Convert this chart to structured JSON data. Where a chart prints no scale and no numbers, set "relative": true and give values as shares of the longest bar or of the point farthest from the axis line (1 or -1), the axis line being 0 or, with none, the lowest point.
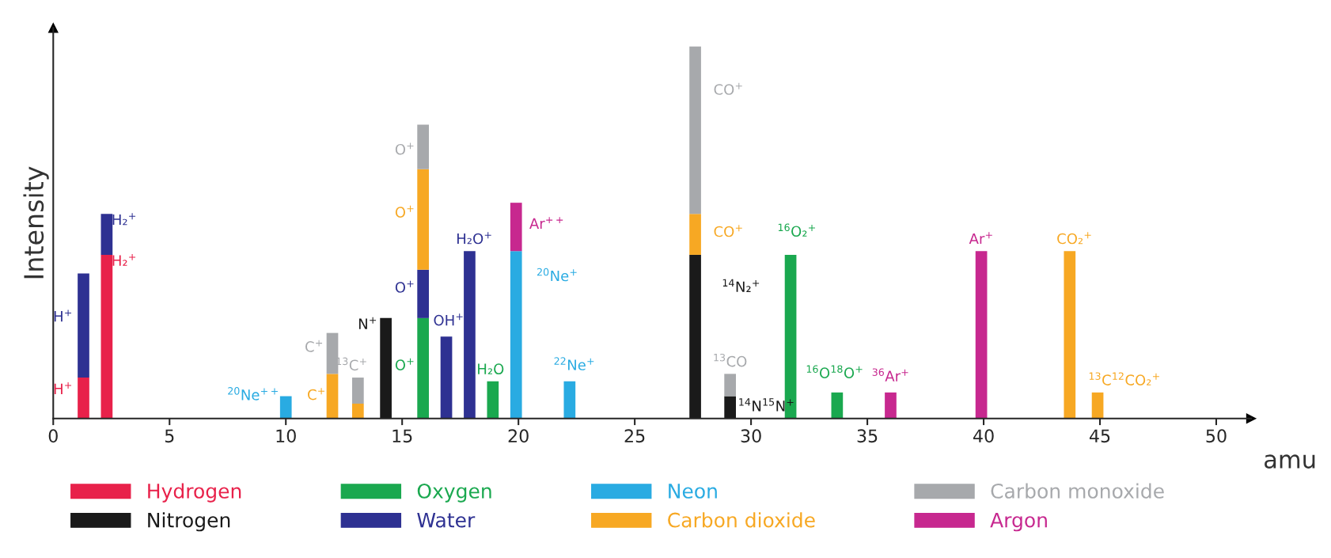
{
  "chart_data": {
    "type": "bar",
    "stacked": true,
    "relative": true,
    "xlabel": "amu",
    "ylabel": "Intensity",
    "xlim": [
      0,
      51.5
    ],
    "xticks": [
      0,
      5,
      10,
      15,
      20,
      25,
      30,
      35,
      40,
      45,
      50
    ],
    "legend": "bottom",
    "x": [
      1.3,
      2.3,
      10,
      12,
      13.1,
      14.3,
      15.9,
      16.9,
      17.9,
      18.9,
      19.9,
      22.2,
      27.6,
      29.1,
      31.7,
      33.7,
      36,
      39.9,
      43.7,
      44.9
    ],
    "series": [
      {
        "name": "Hydrogen",
        "color": "#e8214a",
        "values": [
          0.11,
          0.44,
          null,
          null,
          null,
          null,
          null,
          null,
          null,
          null,
          null,
          null,
          null,
          null,
          null,
          null,
          null,
          null,
          null,
          null
        ]
      },
      {
        "name": "Nitrogen",
        "color": "#1a1a1a",
        "values": [
          null,
          null,
          null,
          null,
          null,
          0.27,
          null,
          null,
          null,
          null,
          null,
          null,
          0.44,
          0.06,
          null,
          null,
          null,
          null,
          null,
          null
        ]
      },
      {
        "name": "Oxygen",
        "color": "#1aa84f",
        "values": [
          null,
          null,
          null,
          null,
          null,
          null,
          0.27,
          null,
          null,
          0.1,
          null,
          null,
          null,
          null,
          0.44,
          0.07,
          null,
          null,
          null,
          null
        ]
      },
      {
        "name": "Water",
        "color": "#2e3192",
        "values": [
          0.28,
          0.11,
          null,
          null,
          null,
          null,
          0.13,
          0.22,
          0.45,
          null,
          null,
          null,
          null,
          null,
          null,
          null,
          null,
          null,
          null,
          null
        ]
      },
      {
        "name": "Neon",
        "color": "#29abe2",
        "values": [
          null,
          null,
          0.06,
          null,
          null,
          null,
          null,
          null,
          null,
          null,
          0.45,
          0.1,
          null,
          null,
          null,
          null,
          null,
          null,
          null,
          null
        ]
      },
      {
        "name": "Carbon dioxide",
        "color": "#f7a823",
        "values": [
          null,
          null,
          null,
          0.12,
          0.04,
          null,
          0.27,
          null,
          null,
          null,
          null,
          null,
          0.11,
          null,
          null,
          null,
          null,
          null,
          0.45,
          0.07
        ]
      },
      {
        "name": "Carbon monoxide",
        "color": "#a7a9ac",
        "values": [
          null,
          null,
          null,
          0.11,
          0.07,
          null,
          0.12,
          null,
          null,
          null,
          null,
          null,
          0.45,
          0.06,
          null,
          null,
          null,
          null,
          null,
          null
        ]
      },
      {
        "name": "Argon",
        "color": "#c7288f",
        "values": [
          null,
          null,
          null,
          null,
          null,
          null,
          null,
          null,
          null,
          null,
          0.13,
          null,
          null,
          null,
          null,
          null,
          0.07,
          0.45,
          null,
          null
        ]
      }
    ],
    "annotations": [
      {
        "text": "H$^{+}$",
        "x": 1.3,
        "y": 0.11
      },
      {
        "text": "H$^{+}$",
        "x": 1.3,
        "y": 0.39
      },
      {
        "text": "H₂$^{+}$",
        "x": 2.3,
        "y": 0.55
      },
      {
        "text": "H₂$^{+}$",
        "x": 2.3,
        "y": 0.44
      },
      {
        "text": "$^{20}$Ne$^{++}$",
        "x": 10,
        "y": 0.06
      },
      {
        "text": "C$^{+}$",
        "x": 12,
        "y": 0.12
      },
      {
        "text": "C$^{+}$",
        "x": 12,
        "y": 0.23
      },
      {
        "text": "$^{13}$C$^{+}$",
        "x": 13.1,
        "y": 0.11
      },
      {
        "text": "N$^{+}$",
        "x": 14.3,
        "y": 0.27
      },
      {
        "text": "O$^{+}$",
        "x": 15.9,
        "y": 0.79
      },
      {
        "text": "O$^{+}$",
        "x": 15.9,
        "y": 0.67
      },
      {
        "text": "O$^{+}$",
        "x": 15.9,
        "y": 0.4
      },
      {
        "text": "O$^{+}$",
        "x": 15.9,
        "y": 0.27
      },
      {
        "text": "OH$^{+}$",
        "x": 16.9,
        "y": 0.22
      },
      {
        "text": "H₂O$^{+}$",
        "x": 17.9,
        "y": 0.45
      },
      {
        "text": "H₂O",
        "x": 18.9,
        "y": 0.1
      },
      {
        "text": "Ar$^{++}$",
        "x": 19.9,
        "y": 0.58
      },
      {
        "text": "$^{20}$Ne$^{+}$",
        "x": 19.9,
        "y": 0.45
      },
      {
        "text": "$^{22}$Ne$^{+}$",
        "x": 22.2,
        "y": 0.1
      },
      {
        "text": "CO$^{+}$",
        "x": 27.6,
        "y": 1.0
      },
      {
        "text": "CO$^{+}$",
        "x": 27.6,
        "y": 0.55
      },
      {
        "text": "$^{14}$N₂$^{+}$",
        "x": 27.6,
        "y": 0.44
      },
      {
        "text": "$^{13}$CO",
        "x": 29.1,
        "y": 0.12
      },
      {
        "text": "$^{14}$N$^{15}$N$^{+}$",
        "x": 29.1,
        "y": 0.06
      },
      {
        "text": "$^{16}$O₂$^{+}$",
        "x": 31.7,
        "y": 0.44
      },
      {
        "text": "$^{16}$O$^{18}$O$^{+}$",
        "x": 33.7,
        "y": 0.07
      },
      {
        "text": "$^{36}$Ar$^{+}$",
        "x": 36,
        "y": 0.07
      },
      {
        "text": "Ar$^{+}$",
        "x": 39.9,
        "y": 0.45
      },
      {
        "text": "CO₂$^{+}$",
        "x": 43.7,
        "y": 0.45
      },
      {
        "text": "$^{13}$C$^{12}$CO₂$^{+}$",
        "x": 44.9,
        "y": 0.07
      }
    ]
  }
}
